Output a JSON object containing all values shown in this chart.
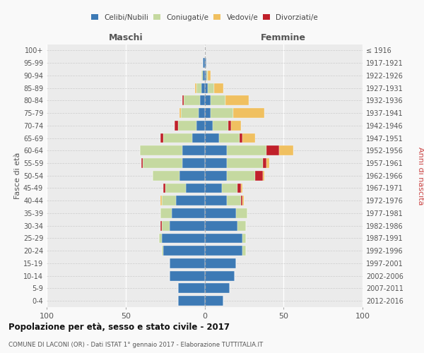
{
  "age_groups": [
    "0-4",
    "5-9",
    "10-14",
    "15-19",
    "20-24",
    "25-29",
    "30-34",
    "35-39",
    "40-44",
    "45-49",
    "50-54",
    "55-59",
    "60-64",
    "65-69",
    "70-74",
    "75-79",
    "80-84",
    "85-89",
    "90-94",
    "95-99",
    "100+"
  ],
  "birth_years": [
    "2012-2016",
    "2007-2011",
    "2002-2006",
    "1997-2001",
    "1992-1996",
    "1987-1991",
    "1982-1986",
    "1977-1981",
    "1972-1976",
    "1967-1971",
    "1962-1966",
    "1957-1961",
    "1952-1956",
    "1947-1951",
    "1942-1946",
    "1937-1941",
    "1932-1936",
    "1927-1931",
    "1922-1926",
    "1917-1921",
    "≤ 1916"
  ],
  "maschi": {
    "celibi": [
      17,
      17,
      22,
      22,
      26,
      27,
      22,
      21,
      18,
      12,
      16,
      14,
      14,
      8,
      5,
      4,
      3,
      2,
      1,
      1,
      0
    ],
    "coniugati": [
      0,
      0,
      0,
      0,
      1,
      2,
      5,
      7,
      9,
      13,
      17,
      25,
      27,
      18,
      12,
      11,
      10,
      3,
      1,
      0,
      0
    ],
    "vedovi": [
      0,
      0,
      0,
      0,
      0,
      0,
      0,
      0,
      1,
      0,
      0,
      0,
      0,
      0,
      0,
      1,
      0,
      1,
      0,
      0,
      0
    ],
    "divorziati": [
      0,
      0,
      0,
      0,
      0,
      0,
      1,
      0,
      0,
      1,
      0,
      1,
      0,
      2,
      2,
      0,
      1,
      0,
      0,
      0,
      0
    ]
  },
  "femmine": {
    "nubili": [
      12,
      16,
      19,
      20,
      24,
      24,
      21,
      20,
      14,
      11,
      14,
      14,
      14,
      9,
      5,
      4,
      4,
      2,
      1,
      1,
      0
    ],
    "coniugate": [
      0,
      0,
      0,
      0,
      2,
      2,
      5,
      7,
      9,
      10,
      18,
      23,
      25,
      13,
      10,
      14,
      9,
      4,
      1,
      0,
      0
    ],
    "vedove": [
      0,
      0,
      0,
      0,
      0,
      0,
      0,
      0,
      1,
      1,
      1,
      2,
      9,
      8,
      6,
      20,
      15,
      6,
      2,
      0,
      0
    ],
    "divorziate": [
      0,
      0,
      0,
      0,
      0,
      0,
      0,
      0,
      1,
      2,
      5,
      2,
      8,
      2,
      2,
      0,
      0,
      0,
      0,
      0,
      0
    ]
  },
  "colors": {
    "celibi": "#3d7ab5",
    "coniugati": "#c5d9a0",
    "vedovi": "#f0c060",
    "divorziati": "#c0202a"
  },
  "xlim": 100,
  "title": "Popolazione per età, sesso e stato civile - 2017",
  "subtitle": "COMUNE DI LACONI (OR) - Dati ISTAT 1° gennaio 2017 - Elaborazione TUTTITALIA.IT",
  "ylabel_left": "Fasce di età",
  "ylabel_right": "Anni di nascita",
  "xlabel_left": "Maschi",
  "xlabel_right": "Femmine",
  "bg_color": "#f9f9f9",
  "plot_bg_color": "#ebebeb"
}
